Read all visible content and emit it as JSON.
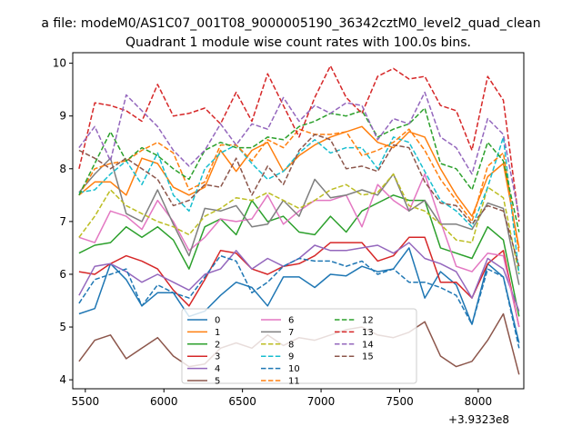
{
  "suptitle": "a file: modeM0/AS1C07_001T08_9000005190_36342cztM0_level2_quad_clean",
  "chart_data": {
    "type": "line",
    "title": "Quadrant 1 module wise count rates with 100.0s bins.",
    "xlabel": "",
    "ylabel": "",
    "x_offset_label": "+3.9323e8",
    "xlim": [
      5420,
      8290
    ],
    "ylim": [
      3.83,
      10.2
    ],
    "x_ticks": [
      5500,
      6000,
      6500,
      7000,
      7500,
      8000
    ],
    "x_tick_labels": [
      "5500",
      "6000",
      "6500",
      "7000",
      "7500",
      "8000"
    ],
    "y_ticks": [
      4,
      5,
      6,
      7,
      8,
      9,
      10
    ],
    "y_tick_labels": [
      "4",
      "5",
      "6",
      "7",
      "8",
      "9",
      "10"
    ],
    "legend_position": "lower-center",
    "legend_columns": 3,
    "x": [
      5460,
      5560,
      5660,
      5760,
      5860,
      5960,
      6060,
      6160,
      6260,
      6360,
      6460,
      6560,
      6660,
      6760,
      6860,
      6960,
      7060,
      7160,
      7260,
      7360,
      7460,
      7560,
      7660,
      7760,
      7860,
      7960,
      8060,
      8160,
      8260
    ],
    "series": [
      {
        "name": "0",
        "color": "#1f77b4",
        "dash": "solid",
        "values": [
          5.25,
          5.35,
          6.2,
          5.9,
          5.4,
          5.65,
          5.65,
          5.2,
          5.3,
          5.6,
          5.85,
          5.75,
          5.4,
          5.95,
          5.95,
          5.75,
          6.0,
          5.97,
          6.15,
          6.05,
          6.1,
          6.5,
          5.55,
          6.05,
          5.8,
          5.05,
          6.2,
          5.95,
          4.7
        ]
      },
      {
        "name": "1",
        "color": "#ff7f0e",
        "dash": "solid",
        "values": [
          7.5,
          7.75,
          7.75,
          7.5,
          8.2,
          8.1,
          7.65,
          7.5,
          7.65,
          8.35,
          7.95,
          8.35,
          8.5,
          7.95,
          8.25,
          8.45,
          8.6,
          8.7,
          8.8,
          8.5,
          8.4,
          8.7,
          8.6,
          8.0,
          7.5,
          7.1,
          7.85,
          8.1,
          6.5
        ]
      },
      {
        "name": "2",
        "color": "#2ca02c",
        "dash": "solid",
        "values": [
          6.4,
          6.55,
          6.6,
          6.9,
          6.7,
          6.9,
          6.65,
          6.1,
          6.9,
          7.05,
          6.75,
          7.4,
          7.0,
          7.1,
          6.8,
          6.75,
          7.1,
          6.8,
          7.2,
          7.35,
          7.5,
          7.4,
          7.4,
          6.5,
          6.4,
          6.3,
          6.9,
          6.65,
          5.2
        ]
      },
      {
        "name": "3",
        "color": "#d62728",
        "dash": "solid",
        "values": [
          6.05,
          6.0,
          6.2,
          6.35,
          6.25,
          6.1,
          5.7,
          5.4,
          5.9,
          6.45,
          6.4,
          6.1,
          6.0,
          6.15,
          6.2,
          6.35,
          6.6,
          6.6,
          6.6,
          6.25,
          6.35,
          6.7,
          6.7,
          5.85,
          5.85,
          5.55,
          6.2,
          6.45,
          5.0
        ]
      },
      {
        "name": "4",
        "color": "#9467bd",
        "dash": "solid",
        "values": [
          5.6,
          6.15,
          6.2,
          6.05,
          5.85,
          6.0,
          5.85,
          5.7,
          6.0,
          6.1,
          6.45,
          6.1,
          6.3,
          6.15,
          6.3,
          6.55,
          6.45,
          6.45,
          6.5,
          6.55,
          6.4,
          6.6,
          6.3,
          6.2,
          6.05,
          5.55,
          6.3,
          6.1,
          5.3
        ]
      },
      {
        "name": "5",
        "color": "#8c564b",
        "dash": "solid",
        "values": [
          4.35,
          4.75,
          4.85,
          4.4,
          4.6,
          4.8,
          4.45,
          4.25,
          4.3,
          4.6,
          4.7,
          4.6,
          4.85,
          4.65,
          4.8,
          4.75,
          4.85,
          4.95,
          5.0,
          4.85,
          4.8,
          4.9,
          5.1,
          4.45,
          4.25,
          4.35,
          4.75,
          5.25,
          4.1
        ]
      },
      {
        "name": "6",
        "color": "#e377c2",
        "dash": "solid",
        "values": [
          6.7,
          6.6,
          7.2,
          7.1,
          6.85,
          7.4,
          7.0,
          6.45,
          6.7,
          7.05,
          7.0,
          7.05,
          7.5,
          6.95,
          7.2,
          7.4,
          7.4,
          7.5,
          6.9,
          7.7,
          7.4,
          7.2,
          7.9,
          7.0,
          6.15,
          6.05,
          6.4,
          6.35,
          5.0
        ]
      },
      {
        "name": "7",
        "color": "#7f7f7f",
        "dash": "solid",
        "values": [
          7.55,
          7.9,
          8.2,
          7.15,
          7.0,
          7.6,
          6.95,
          6.35,
          7.25,
          7.2,
          7.3,
          6.9,
          6.95,
          7.4,
          7.1,
          7.8,
          7.45,
          7.5,
          7.6,
          7.5,
          7.9,
          7.2,
          7.4,
          6.95,
          6.95,
          6.85,
          7.35,
          7.25,
          5.8
        ]
      },
      {
        "name": "8",
        "color": "#bcbd22",
        "dash": "dashed",
        "values": [
          6.7,
          7.1,
          7.6,
          7.3,
          7.15,
          7.0,
          6.9,
          6.75,
          7.1,
          7.25,
          7.45,
          7.4,
          7.55,
          7.4,
          7.25,
          7.4,
          7.6,
          7.7,
          7.5,
          7.55,
          7.9,
          7.3,
          7.2,
          6.95,
          6.65,
          6.6,
          7.65,
          7.45,
          6.0
        ]
      },
      {
        "name": "9",
        "color": "#17becf",
        "dash": "dashed",
        "values": [
          7.55,
          7.6,
          7.9,
          8.15,
          7.7,
          8.3,
          7.5,
          7.2,
          8.0,
          8.3,
          8.45,
          8.1,
          7.8,
          7.95,
          8.3,
          8.55,
          8.3,
          8.4,
          8.4,
          8.0,
          8.6,
          8.5,
          7.95,
          7.4,
          7.2,
          6.9,
          7.65,
          8.6,
          6.0
        ]
      },
      {
        "name": "10",
        "color": "#1f77b4",
        "dash": "dashed",
        "values": [
          5.45,
          5.9,
          6.0,
          6.1,
          5.4,
          5.8,
          5.65,
          5.55,
          5.95,
          6.35,
          6.25,
          5.65,
          5.85,
          6.15,
          6.3,
          6.25,
          6.25,
          6.15,
          6.25,
          6.0,
          6.1,
          5.85,
          5.85,
          5.75,
          5.6,
          5.05,
          6.1,
          5.95,
          4.6
        ]
      },
      {
        "name": "11",
        "color": "#ff7f0e",
        "dash": "dashed",
        "values": [
          7.5,
          8.0,
          8.1,
          8.15,
          8.35,
          8.5,
          8.3,
          7.6,
          7.75,
          8.45,
          8.45,
          8.15,
          8.55,
          8.4,
          8.75,
          8.65,
          8.65,
          8.7,
          8.25,
          8.35,
          8.5,
          8.75,
          8.35,
          7.8,
          7.4,
          7.0,
          8.05,
          8.3,
          6.4
        ]
      },
      {
        "name": "12",
        "color": "#2ca02c",
        "dash": "dashed",
        "values": [
          7.5,
          8.1,
          8.7,
          8.15,
          8.4,
          8.25,
          8.0,
          7.8,
          8.35,
          8.5,
          8.4,
          8.4,
          8.6,
          8.55,
          8.8,
          8.9,
          9.05,
          9.0,
          9.1,
          8.6,
          8.75,
          8.85,
          9.15,
          8.1,
          8.0,
          7.6,
          8.5,
          8.15,
          6.8
        ]
      },
      {
        "name": "13",
        "color": "#d62728",
        "dash": "dashed",
        "values": [
          8.0,
          9.25,
          9.2,
          9.1,
          8.9,
          9.6,
          9.0,
          9.05,
          9.15,
          8.85,
          9.45,
          8.9,
          9.8,
          9.2,
          8.6,
          9.35,
          9.95,
          9.35,
          9.05,
          9.75,
          9.9,
          9.7,
          9.75,
          9.2,
          9.1,
          8.35,
          9.75,
          9.3,
          7.0
        ]
      },
      {
        "name": "14",
        "color": "#9467bd",
        "dash": "dashed",
        "values": [
          8.4,
          8.8,
          8.15,
          9.4,
          9.1,
          8.8,
          8.35,
          8.05,
          8.35,
          8.85,
          8.45,
          8.85,
          8.75,
          9.35,
          8.9,
          9.2,
          9.05,
          9.25,
          9.2,
          8.55,
          8.95,
          8.85,
          9.45,
          8.6,
          8.4,
          7.9,
          8.95,
          8.65,
          7.1
        ]
      },
      {
        "name": "15",
        "color": "#8c564b",
        "dash": "dashed",
        "values": [
          8.35,
          8.2,
          8.0,
          8.2,
          8.0,
          7.8,
          7.3,
          7.4,
          7.7,
          7.65,
          8.2,
          7.5,
          8.05,
          7.7,
          8.35,
          8.65,
          8.55,
          8.0,
          8.05,
          7.95,
          8.45,
          8.4,
          7.75,
          7.35,
          7.3,
          6.95,
          7.3,
          7.2,
          6.15
        ]
      }
    ]
  }
}
